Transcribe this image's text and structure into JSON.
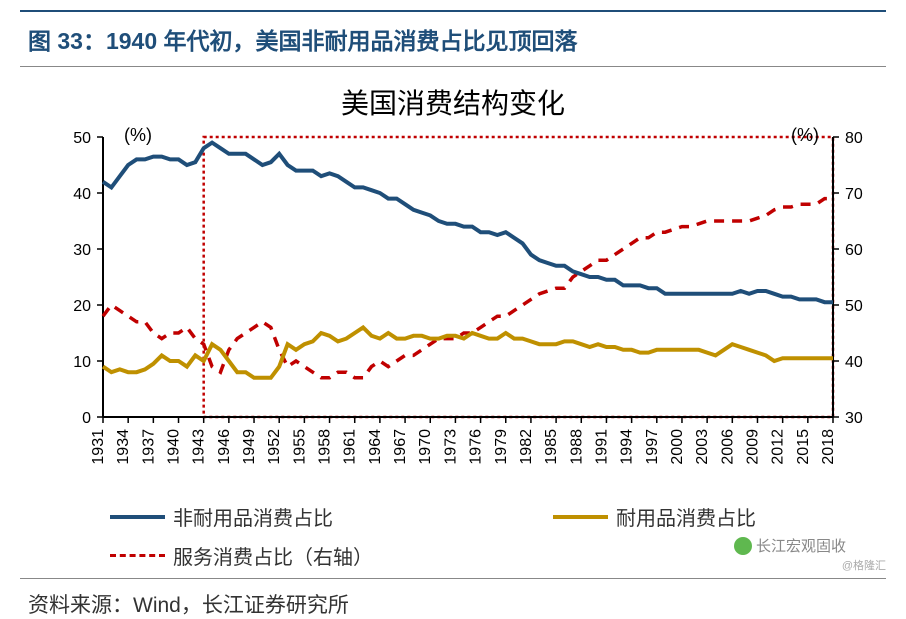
{
  "titleBar": "图 33：1940 年代初，美国非耐用品消费占比见顶回落",
  "chartTitle": "美国消费结构变化",
  "leftUnit": "(%)",
  "rightUnit": "(%)",
  "source": "资料来源：Wind，长江证券研究所",
  "watermark1": "长江宏观固收",
  "watermark2": "@格隆汇",
  "leftAxis": {
    "min": 0,
    "max": 50,
    "step": 10,
    "ticks": [
      0,
      10,
      20,
      30,
      40,
      50
    ]
  },
  "rightAxis": {
    "min": 30,
    "max": 80,
    "step": 10,
    "ticks": [
      30,
      40,
      50,
      60,
      70,
      80
    ]
  },
  "xLabels": [
    "1931",
    "1934",
    "1937",
    "1940",
    "1943",
    "1946",
    "1949",
    "1952",
    "1955",
    "1958",
    "1961",
    "1964",
    "1967",
    "1970",
    "1973",
    "1976",
    "1979",
    "1982",
    "1985",
    "1988",
    "1991",
    "1994",
    "1997",
    "2000",
    "2003",
    "2006",
    "2009",
    "2012",
    "2015",
    "2018"
  ],
  "highlightBox": {
    "startYear": "1943",
    "endYear": "2018",
    "yTop": 50,
    "yBottom": 0
  },
  "colors": {
    "nondurable": "#1f4e79",
    "durable": "#bf9000",
    "services": "#c00000",
    "highlight": "#c00000",
    "axis": "#000000",
    "tick": "#000000"
  },
  "legend": {
    "nondurable": "非耐用品消费占比",
    "durable": "耐用品消费占比",
    "services": "服务消费占比（右轴）"
  },
  "series": {
    "nondurable": [
      42,
      41,
      43,
      45,
      46,
      46,
      46.5,
      46.5,
      46,
      46,
      45,
      45.5,
      48,
      49,
      48,
      47,
      47,
      47,
      46,
      45,
      45.5,
      47,
      45,
      44,
      44,
      44,
      43,
      43.5,
      43,
      42,
      41,
      41,
      40.5,
      40,
      39,
      39,
      38,
      37,
      36.5,
      36,
      35,
      34.5,
      34.5,
      34,
      34,
      33,
      33,
      32.5,
      33,
      32,
      31,
      29,
      28,
      27.5,
      27,
      27,
      26,
      25.5,
      25,
      25,
      24.5,
      24.5,
      23.5,
      23.5,
      23.5,
      23,
      23,
      22,
      22,
      22,
      22,
      22,
      22,
      22,
      22,
      22,
      22.5,
      22,
      22.5,
      22.5,
      22,
      21.5,
      21.5,
      21,
      21,
      21,
      20.5,
      20.5
    ],
    "durable": [
      9,
      8,
      8.5,
      8,
      8,
      8.5,
      9.5,
      11,
      10,
      10,
      9,
      11,
      10,
      13,
      12,
      10,
      8,
      8,
      7,
      7,
      7,
      9,
      13,
      12,
      13,
      13.5,
      15,
      14.5,
      13.5,
      14,
      15,
      16,
      14.5,
      14,
      15,
      14,
      14,
      14.5,
      14.5,
      14,
      14,
      14.5,
      14.5,
      14,
      15,
      14.5,
      14,
      14,
      15,
      14,
      14,
      13.5,
      13,
      13,
      13,
      13.5,
      13.5,
      13,
      12.5,
      13,
      12.5,
      12.5,
      12,
      12,
      11.5,
      11.5,
      12,
      12,
      12,
      12,
      12,
      12,
      11.5,
      11,
      12,
      13,
      12.5,
      12,
      11.5,
      11,
      10,
      10.5,
      10.5,
      10.5,
      10.5,
      10.5,
      10.5,
      10.5
    ],
    "services": [
      48,
      50,
      49,
      48,
      47,
      47,
      45,
      44,
      45,
      45,
      46,
      44,
      43,
      39,
      38,
      42,
      44,
      45,
      46,
      47,
      46,
      42,
      39,
      40,
      39,
      38,
      37,
      37,
      38,
      38,
      37,
      37,
      39,
      40,
      39,
      40,
      41,
      41,
      42,
      43,
      44,
      44,
      44,
      45,
      45,
      46,
      47,
      48,
      48,
      49,
      50,
      51,
      52,
      52.5,
      53,
      53,
      55,
      56,
      57,
      58,
      58,
      59,
      60,
      61,
      62,
      62,
      63,
      63,
      63.5,
      64,
      64,
      64.5,
      65,
      65,
      65,
      65,
      65,
      65,
      65.5,
      66,
      67,
      67.5,
      67.5,
      68,
      68,
      68,
      69,
      69
    ]
  },
  "lineStyles": {
    "nondurable": {
      "width": 4,
      "dash": "none"
    },
    "durable": {
      "width": 4,
      "dash": "none"
    },
    "services": {
      "width": 3.5,
      "dash": "10,8"
    }
  }
}
